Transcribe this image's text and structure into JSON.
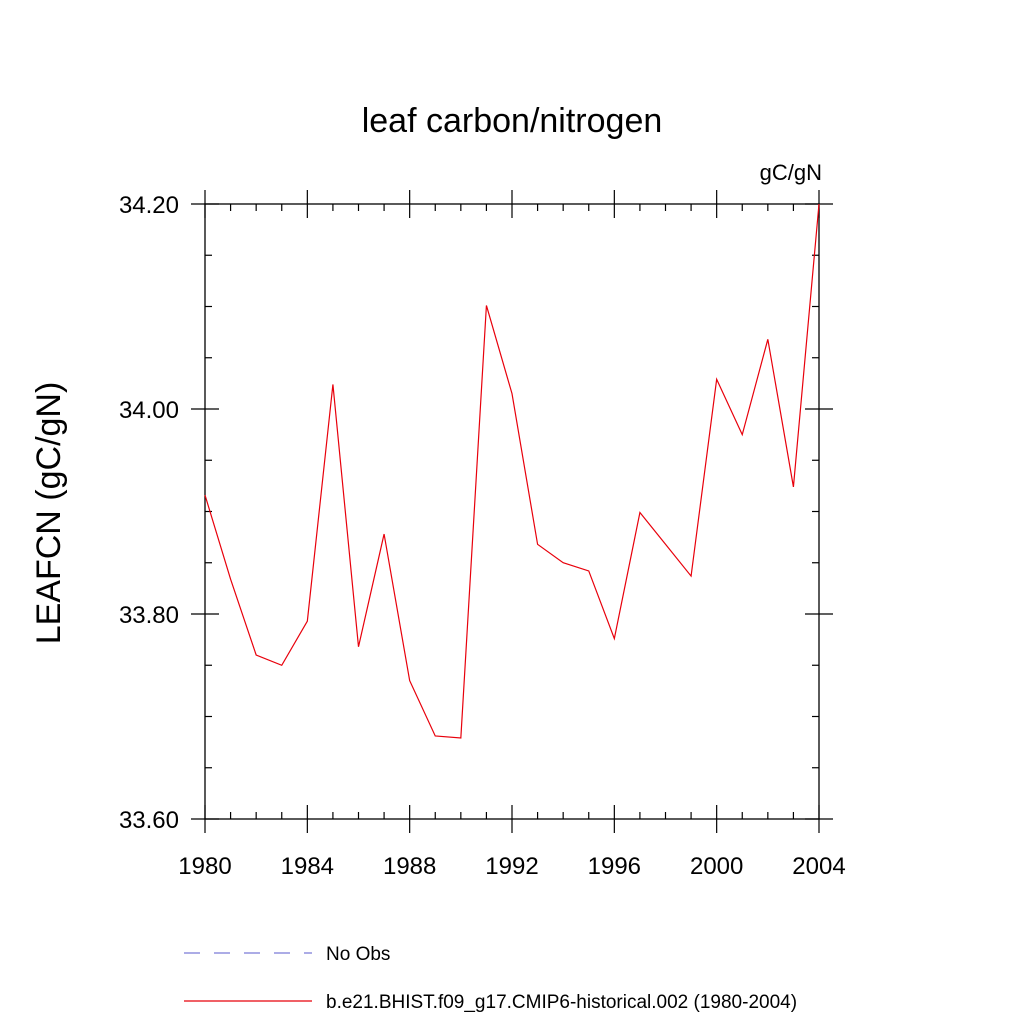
{
  "chart_data": {
    "type": "line",
    "title": "leaf carbon/nitrogen",
    "units_label": "gC/gN",
    "ylabel": "LEAFCN  (gC/gN)",
    "xlabel": "",
    "xlim": [
      1980,
      2004
    ],
    "ylim": [
      33.6,
      34.2
    ],
    "x_ticks": [
      1980,
      1984,
      1988,
      1992,
      1996,
      2000,
      2004
    ],
    "x_tick_labels": [
      "1980",
      "1984",
      "1988",
      "1992",
      "1996",
      "2000",
      "2004"
    ],
    "x_minor_step": 1,
    "y_ticks": [
      33.6,
      33.8,
      34.0,
      34.2
    ],
    "y_tick_labels": [
      "33.60",
      "33.80",
      "34.00",
      "34.20"
    ],
    "y_minor_step": 0.05,
    "grid": false,
    "legend_position": "bottom",
    "series": [
      {
        "name": "No Obs",
        "style": "dashed",
        "color": "#7b7bd6",
        "x": [],
        "values": []
      },
      {
        "name": "b.e21.BHIST.f09_g17.CMIP6-historical.002 (1980-2004)",
        "style": "solid",
        "color": "#e8000b",
        "x": [
          1980,
          1981,
          1982,
          1983,
          1984,
          1985,
          1986,
          1987,
          1988,
          1989,
          1990,
          1991,
          1992,
          1993,
          1994,
          1995,
          1996,
          1997,
          1998,
          1999,
          2000,
          2001,
          2002,
          2003,
          2004
        ],
        "values": [
          33.916,
          33.834,
          33.76,
          33.75,
          33.793,
          34.024,
          33.768,
          33.878,
          33.735,
          33.681,
          33.679,
          34.101,
          34.015,
          33.868,
          33.85,
          33.842,
          33.776,
          33.899,
          33.868,
          33.837,
          34.029,
          33.975,
          34.068,
          33.924,
          34.2
        ]
      }
    ]
  }
}
